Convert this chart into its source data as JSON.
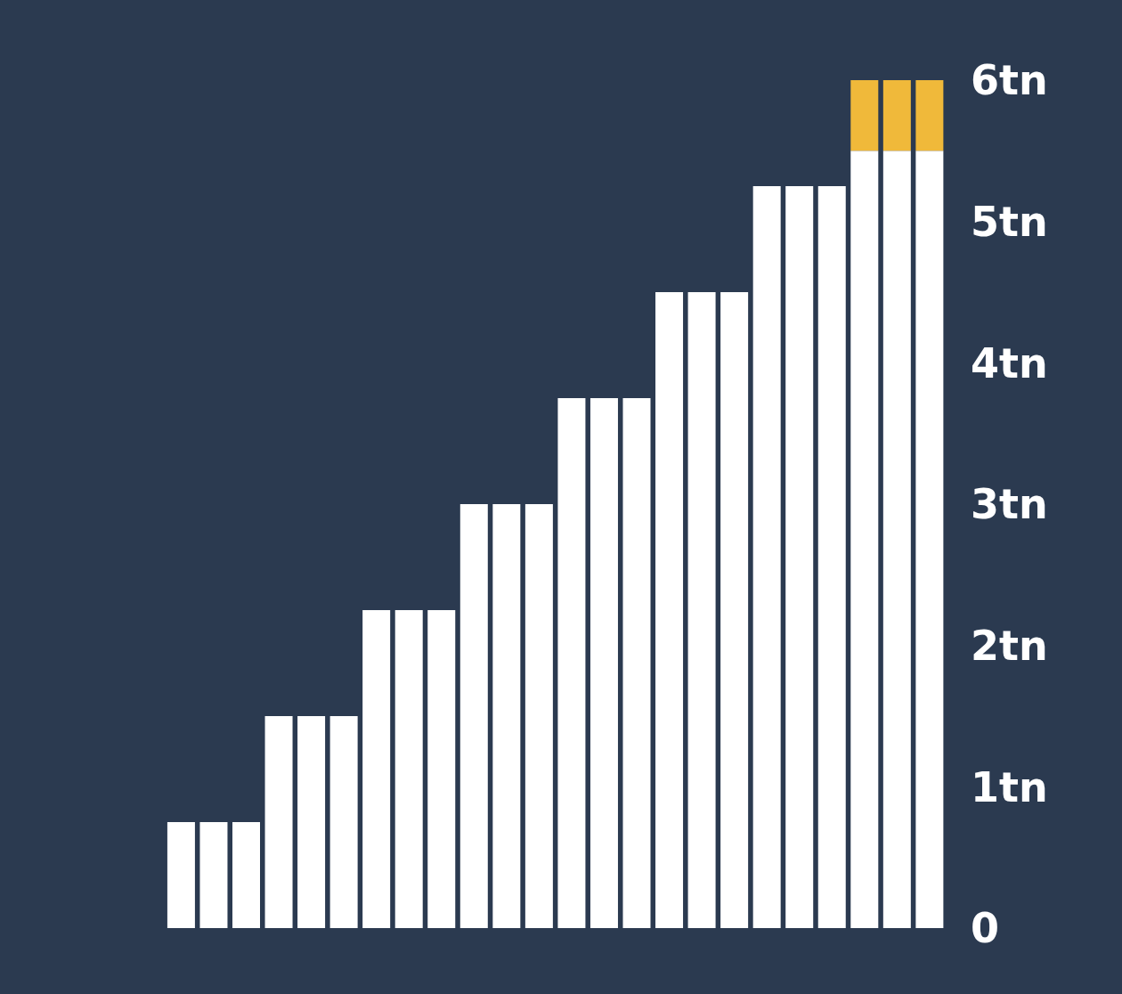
{
  "chart_data": {
    "type": "bar",
    "stacked": true,
    "categories": [
      null,
      null,
      null,
      null,
      null,
      null,
      null,
      null,
      null,
      null,
      null,
      null,
      null,
      null,
      null,
      null,
      null,
      null,
      null,
      null,
      null,
      null,
      null,
      null
    ],
    "series": [
      {
        "color": "#ffffff",
        "values": [
          0.75,
          0.75,
          0.75,
          1.5,
          1.5,
          1.5,
          2.25,
          2.25,
          2.25,
          3,
          3,
          3,
          3.75,
          3.75,
          3.75,
          4.5,
          4.5,
          4.5,
          5.25,
          5.25,
          5.25,
          5.5,
          5.5,
          5.5
        ]
      },
      {
        "color": "#f0b93a",
        "values": [
          null,
          null,
          null,
          null,
          null,
          null,
          null,
          null,
          null,
          null,
          null,
          null,
          null,
          null,
          null,
          null,
          null,
          null,
          null,
          null,
          null,
          0.5,
          0.5,
          0.5
        ]
      }
    ],
    "ylim": [
      0,
      6
    ],
    "yticks": [
      0,
      {
        "value": 1,
        "label": "1tn"
      },
      {
        "value": 2,
        "label": "2tn"
      },
      {
        "value": 3,
        "label": "3tn"
      },
      {
        "value": 4,
        "label": "4tn"
      },
      {
        "value": 5,
        "label": "5tn"
      },
      {
        "value": 6,
        "label": "6tn"
      }
    ],
    "grid": false,
    "legend": false
  }
}
